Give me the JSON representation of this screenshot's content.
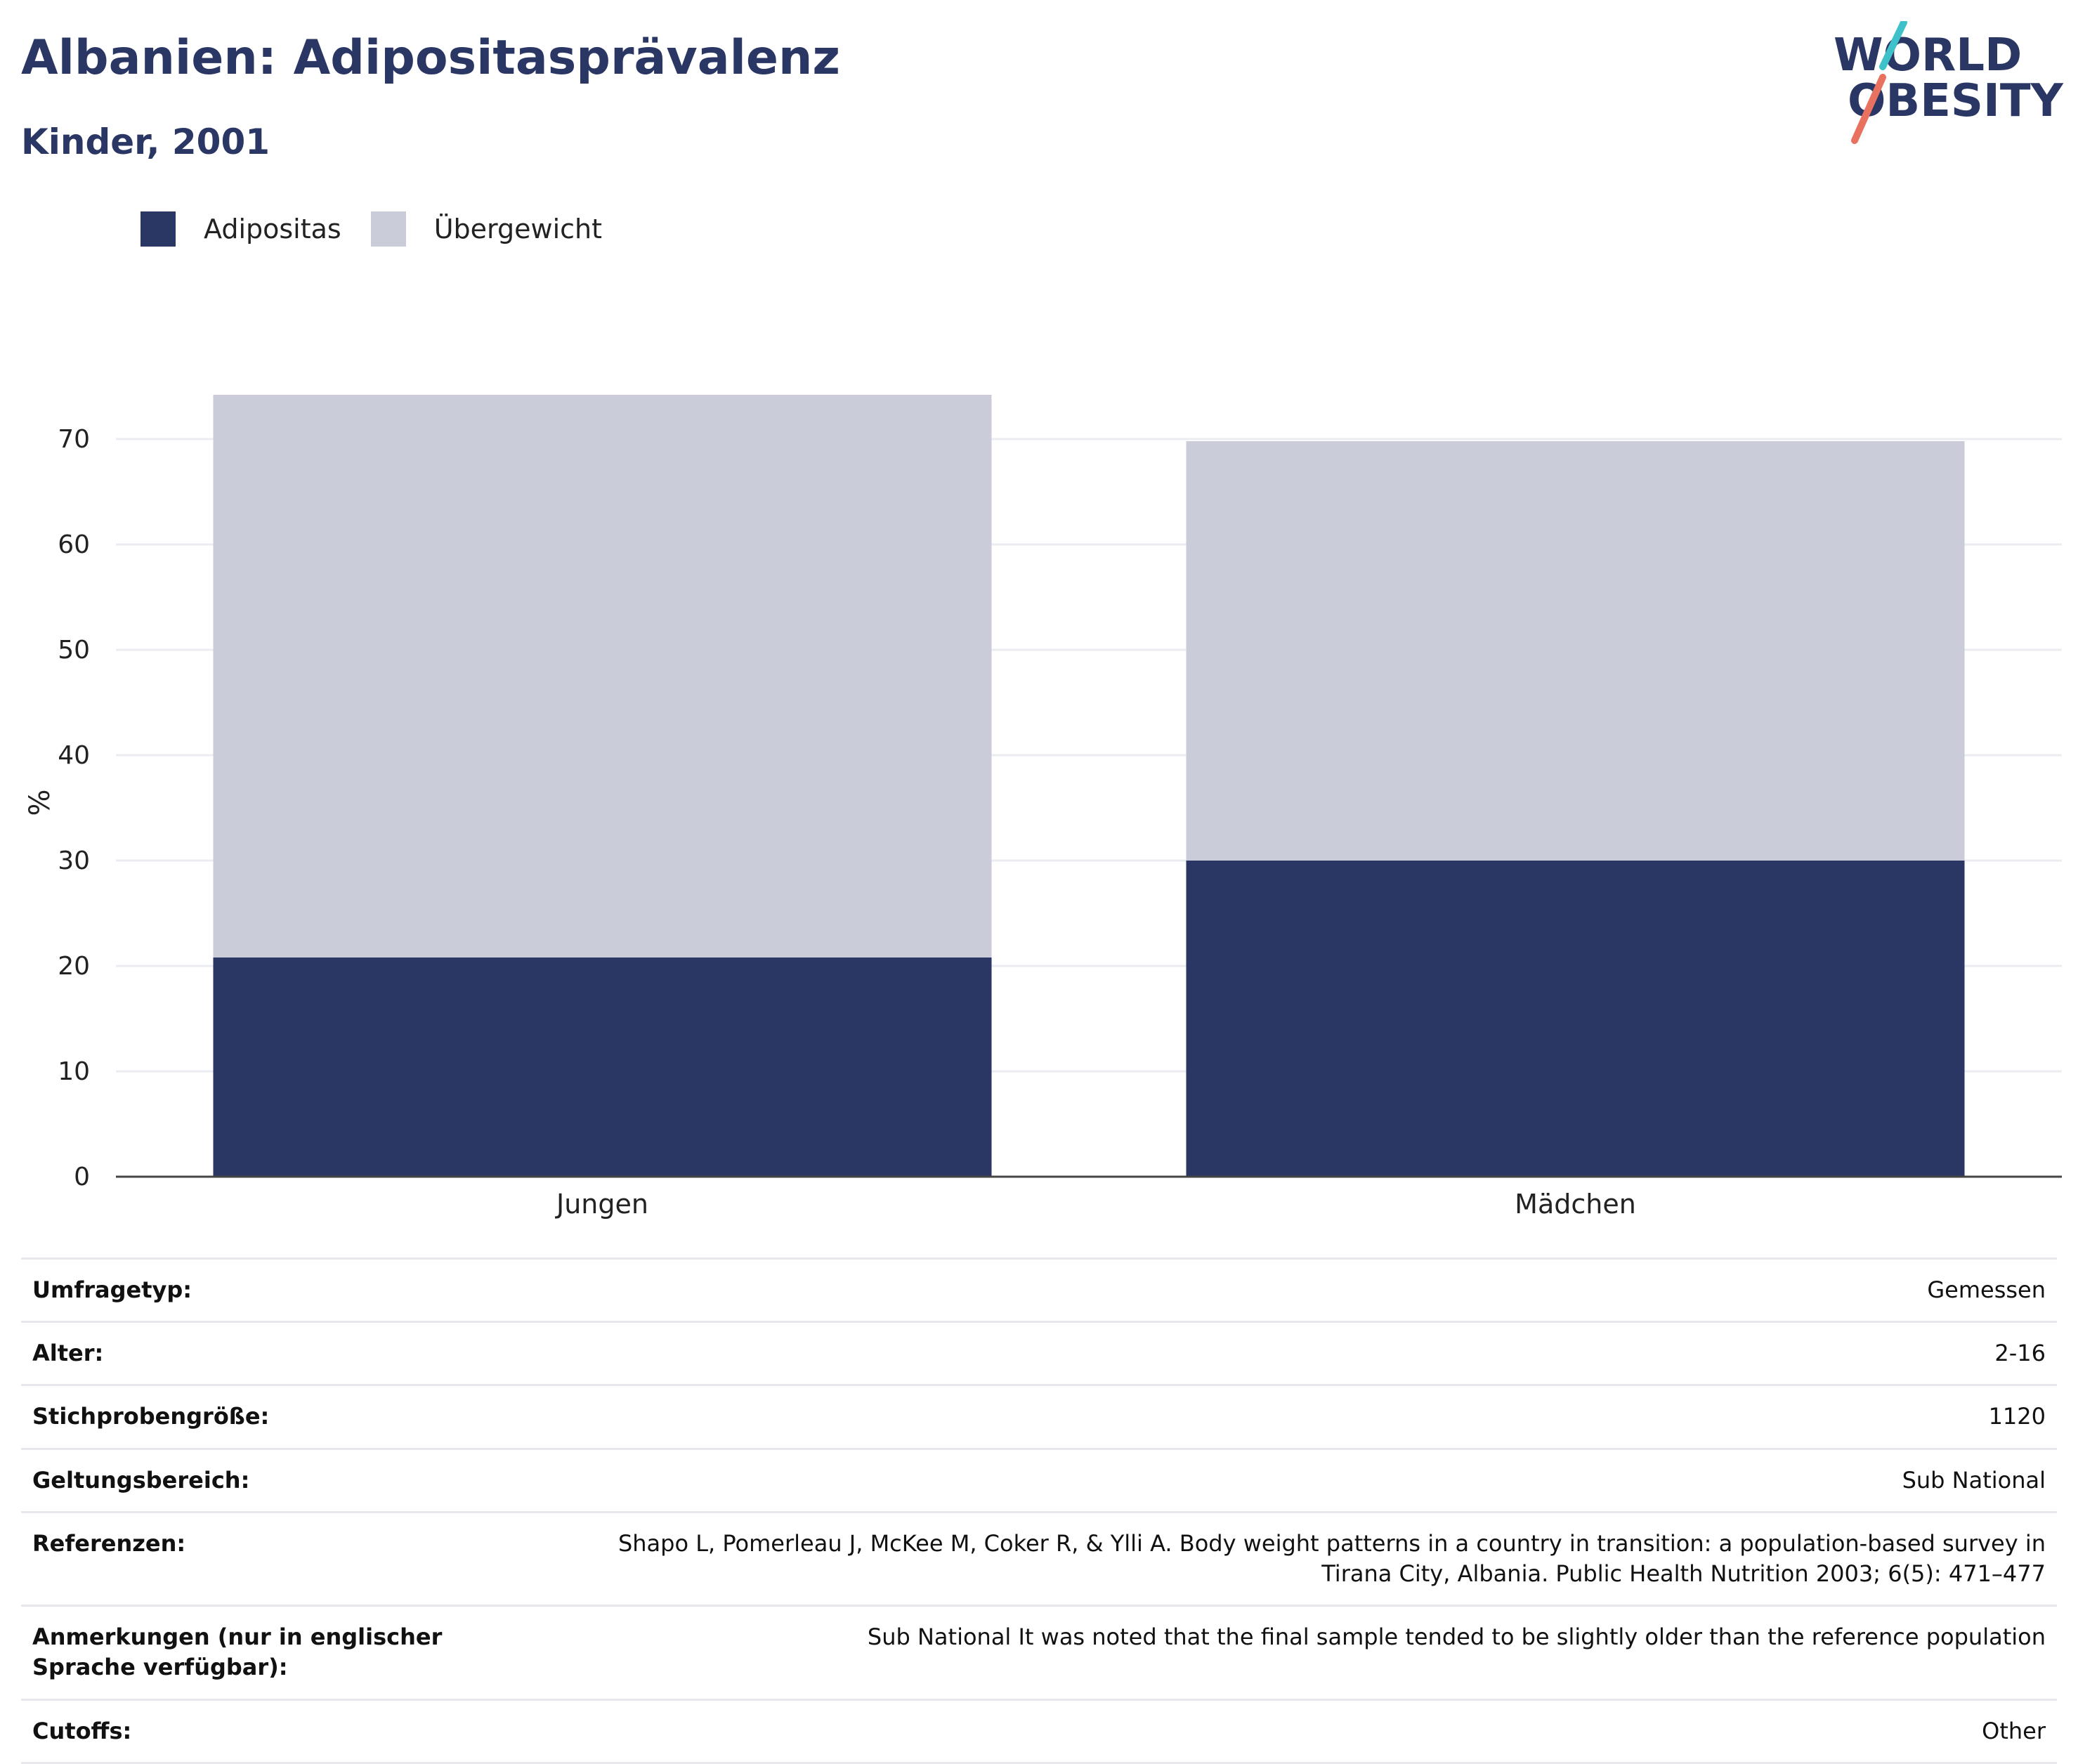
{
  "header": {
    "title": "Albanien: Adipositasprävalenz",
    "subtitle": "Kinder, 2001"
  },
  "logo": {
    "line1": "WORLD",
    "line2": "OBESITY",
    "accent_colors": [
      "#3ec1c9",
      "#e8715f"
    ]
  },
  "legend": [
    {
      "label": "Adipositas",
      "color": "#2a3664"
    },
    {
      "label": "Übergewicht",
      "color": "#cacdd9"
    }
  ],
  "chart_data": {
    "type": "bar",
    "stacked": true,
    "categories": [
      "Jungen",
      "Mädchen"
    ],
    "series": [
      {
        "name": "Adipositas",
        "color": "#2a3664",
        "values": [
          20.8,
          30.0
        ]
      },
      {
        "name": "Übergewicht",
        "color": "#cacdd9",
        "values": [
          53.4,
          39.8
        ]
      }
    ],
    "ylabel": "%",
    "xlabel": "",
    "ylim": [
      0,
      75
    ],
    "yticks": [
      0,
      10,
      20,
      30,
      40,
      50,
      60,
      70
    ],
    "grid": true,
    "legend_position": "top-left"
  },
  "info": [
    {
      "key": "Umfragetyp:",
      "value": "Gemessen"
    },
    {
      "key": "Alter:",
      "value": "2-16"
    },
    {
      "key": "Stichprobengröße:",
      "value": "1120"
    },
    {
      "key": "Geltungsbereich:",
      "value": "Sub National"
    },
    {
      "key": "Referenzen:",
      "value": "Shapo L, Pomerleau J, McKee M, Coker R, & Ylli A. Body weight patterns in a country in transition: a population-based survey in Tirana City, Albania. Public Health Nutrition 2003; 6(5): 471–477"
    },
    {
      "key": "Anmerkungen (nur in englischer Sprache verfügbar):",
      "value": "Sub National It was noted that the final sample tended to be slightly older than the reference population"
    },
    {
      "key": "Cutoffs:",
      "value": "Other"
    }
  ]
}
